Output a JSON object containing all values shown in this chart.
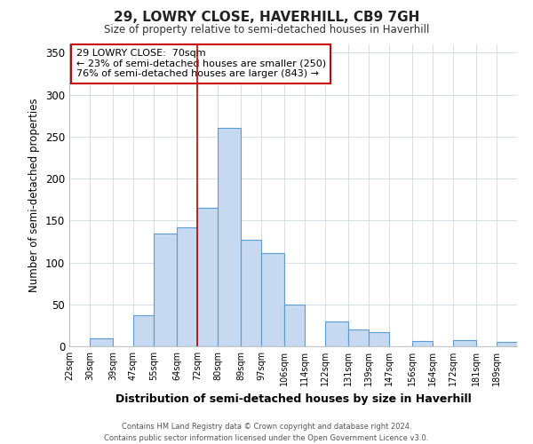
{
  "title": "29, LOWRY CLOSE, HAVERHILL, CB9 7GH",
  "subtitle": "Size of property relative to semi-detached houses in Haverhill",
  "xlabel": "Distribution of semi-detached houses by size in Haverhill",
  "ylabel": "Number of semi-detached properties",
  "bin_labels": [
    "22sqm",
    "30sqm",
    "39sqm",
    "47sqm",
    "55sqm",
    "64sqm",
    "72sqm",
    "80sqm",
    "89sqm",
    "97sqm",
    "106sqm",
    "114sqm",
    "122sqm",
    "131sqm",
    "139sqm",
    "147sqm",
    "156sqm",
    "164sqm",
    "172sqm",
    "181sqm",
    "189sqm"
  ],
  "bin_edges": [
    22,
    30,
    39,
    47,
    55,
    64,
    72,
    80,
    89,
    97,
    106,
    114,
    122,
    131,
    139,
    147,
    156,
    164,
    172,
    181,
    189,
    197
  ],
  "bar_heights": [
    0,
    10,
    0,
    37,
    135,
    142,
    165,
    260,
    127,
    111,
    50,
    0,
    30,
    20,
    17,
    0,
    6,
    0,
    7,
    0,
    5
  ],
  "bar_color": "#c6d9f0",
  "bar_edgecolor": "#5b9bd5",
  "property_line_x": 72,
  "property_line_color": "#cc0000",
  "ylim": [
    0,
    360
  ],
  "yticks": [
    0,
    50,
    100,
    150,
    200,
    250,
    300,
    350
  ],
  "annotation_title": "29 LOWRY CLOSE:  70sqm",
  "annotation_line1": "← 23% of semi-detached houses are smaller (250)",
  "annotation_line2": "76% of semi-detached houses are larger (843) →",
  "annotation_box_color": "#cc0000",
  "footer_line1": "Contains HM Land Registry data © Crown copyright and database right 2024.",
  "footer_line2": "Contains public sector information licensed under the Open Government Licence v3.0.",
  "background_color": "#ffffff",
  "grid_color": "#d0d8e8"
}
